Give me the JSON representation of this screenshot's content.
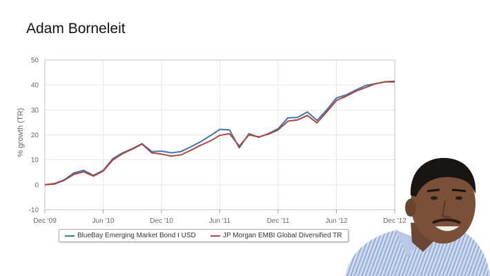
{
  "page": {
    "title": "Adam Borneleit"
  },
  "chart_data": {
    "type": "line",
    "title": "",
    "xlabel": "",
    "ylabel": "% growth (TR)",
    "ylim": [
      -10,
      50
    ],
    "yticks": [
      -10,
      0,
      10,
      20,
      30,
      40,
      50
    ],
    "xlim": [
      "2009-12",
      "2012-12"
    ],
    "xticks": [
      "Dec '09",
      "Jun '10",
      "Dec '10",
      "Jun '11",
      "Dec '11",
      "Jun '12",
      "Dec '12"
    ],
    "grid": true,
    "legend_position": "bottom",
    "x": [
      "2009-12",
      "2010-01",
      "2010-02",
      "2010-03",
      "2010-04",
      "2010-05",
      "2010-06",
      "2010-07",
      "2010-08",
      "2010-09",
      "2010-10",
      "2010-11",
      "2010-12",
      "2011-01",
      "2011-02",
      "2011-03",
      "2011-04",
      "2011-05",
      "2011-06",
      "2011-07",
      "2011-08",
      "2011-09",
      "2011-10",
      "2011-11",
      "2011-12",
      "2012-01",
      "2012-02",
      "2012-03",
      "2012-04",
      "2012-05",
      "2012-06",
      "2012-07",
      "2012-08",
      "2012-09",
      "2012-10",
      "2012-11",
      "2012-12"
    ],
    "series": [
      {
        "name": "BlueBay Emerging Market Bond I USD",
        "color": "#4572a7",
        "values": [
          0,
          0.5,
          2,
          4.8,
          5.8,
          3.8,
          5.8,
          10.5,
          12.8,
          14.5,
          16.5,
          13.3,
          13.5,
          12.8,
          13.3,
          15.2,
          17.2,
          19.6,
          22.2,
          22,
          14.8,
          20.5,
          19,
          20.5,
          22.5,
          26.8,
          27,
          29.2,
          25.8,
          30,
          34.8,
          36,
          38,
          39.8,
          40.5,
          41.2,
          41.2
        ]
      },
      {
        "name": "JP Morgan EMBI Global Diversified TR",
        "color": "#aa4643",
        "values": [
          0,
          0.3,
          1.8,
          4.2,
          5.2,
          3.5,
          5.5,
          10,
          12.5,
          14.3,
          16.3,
          12.8,
          12.3,
          11.5,
          12,
          13.8,
          15.8,
          17.5,
          19.8,
          20.5,
          15.5,
          20,
          19.2,
          20.3,
          22,
          25.5,
          26,
          27.8,
          24.8,
          29.2,
          33.8,
          35.5,
          37.5,
          39,
          40.5,
          41.3,
          41.5
        ]
      }
    ]
  }
}
